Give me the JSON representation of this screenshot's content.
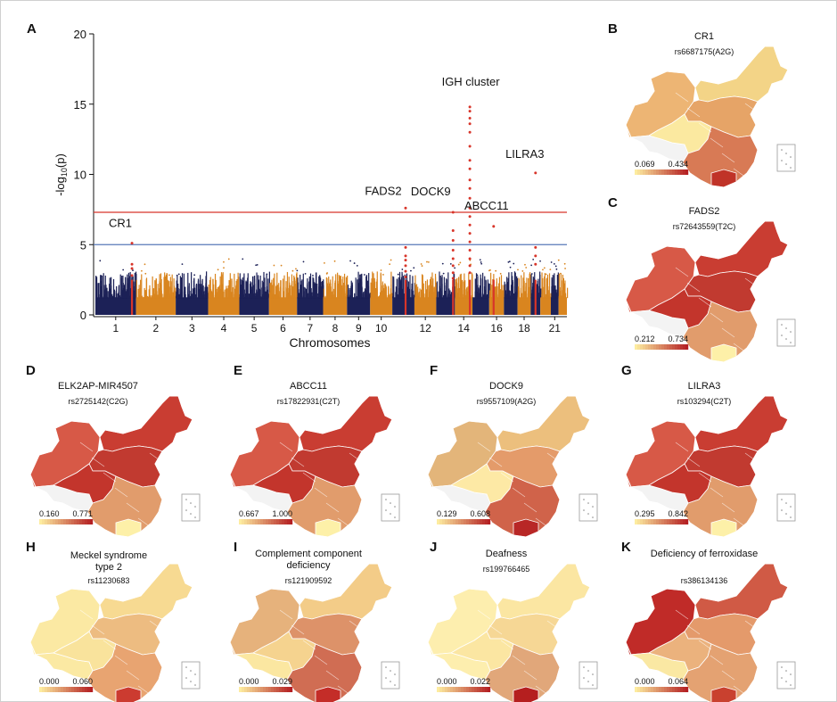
{
  "chart_data": [
    {
      "panel": "A",
      "type": "scatter",
      "subtype": "manhattan",
      "ylabel": "-log10(p)",
      "xlabel": "Chromosomes",
      "ylim": [
        0,
        20
      ],
      "yticks": [
        0,
        5,
        10,
        15,
        20
      ],
      "chromosomes": [
        1,
        2,
        3,
        4,
        5,
        6,
        7,
        8,
        9,
        10,
        11,
        12,
        13,
        14,
        15,
        16,
        17,
        18,
        19,
        20,
        21,
        22
      ],
      "tick_labels": [
        "1",
        "2",
        "3",
        "4",
        "5",
        "6",
        "7",
        "8",
        "9",
        "10",
        "12",
        "14",
        "16",
        "18",
        "21"
      ],
      "tick_chroms": [
        1,
        2,
        3,
        4,
        5,
        6,
        7,
        8,
        9,
        10,
        12,
        14,
        16,
        18,
        21
      ],
      "chrom_colors": [
        "#1c2157",
        "#d9851f"
      ],
      "hit_color": "#d8352a",
      "thresholds": [
        {
          "name": "genome-wide",
          "value": 7.3,
          "color": "#d8352a"
        },
        {
          "name": "suggestive",
          "value": 5.0,
          "color": "#5878b8"
        }
      ],
      "annotations": [
        {
          "label": "CR1",
          "chrom": 1,
          "value": 5.1
        },
        {
          "label": "FADS2",
          "chrom": 11,
          "value": 7.6
        },
        {
          "label": "DOCK9",
          "chrom": 13,
          "value": 7.3
        },
        {
          "label": "IGH cluster",
          "chrom": 14,
          "value": 14.8
        },
        {
          "label": "ABCC11",
          "chrom": 16,
          "value": 6.3
        },
        {
          "label": "LILRA3",
          "chrom": 19,
          "value": 10.1
        }
      ],
      "hits": [
        {
          "chrom": 1,
          "pos": 0.9,
          "values": [
            5.1,
            3.6,
            3.3,
            2.8
          ]
        },
        {
          "chrom": 11,
          "pos": 0.6,
          "values": [
            7.6,
            4.8,
            4.2,
            3.9,
            3.5,
            3.1,
            2.7
          ]
        },
        {
          "chrom": 13,
          "pos": 0.9,
          "values": [
            7.3,
            6.0,
            5.3,
            4.6,
            4.0,
            3.5,
            3.0,
            2.6
          ]
        },
        {
          "chrom": 14,
          "pos": 0.85,
          "values": [
            14.8,
            14.5,
            14.0,
            13.6,
            13.0,
            12.0,
            11.0,
            10.4,
            9.6,
            9.0,
            8.3,
            7.6,
            7.0,
            6.4,
            5.8,
            5.2,
            4.6,
            4.0,
            3.5,
            3.0
          ]
        },
        {
          "chrom": 16,
          "pos": 0.3,
          "values": [
            6.3
          ]
        },
        {
          "chrom": 19,
          "pos": 0.5,
          "values": [
            10.1,
            4.8,
            4.2,
            3.6
          ]
        }
      ]
    },
    {
      "panel": "B",
      "type": "heatmap",
      "subtype": "choropleth-map",
      "title": "CR1",
      "subtitle": "rs6687175(A2G)",
      "range": [
        0.069,
        0.434
      ],
      "palette": "low"
    },
    {
      "panel": "C",
      "type": "heatmap",
      "subtype": "choropleth-map",
      "title": "FADS2",
      "subtitle": "rs72643559(T2C)",
      "range": [
        0.212,
        0.734
      ],
      "palette": "high"
    },
    {
      "panel": "D",
      "type": "heatmap",
      "subtype": "choropleth-map",
      "title": "ELK2AP-MIR4507",
      "subtitle": "rs2725142(C2G)",
      "range": [
        0.16,
        0.771
      ],
      "palette": "high"
    },
    {
      "panel": "E",
      "type": "heatmap",
      "subtype": "choropleth-map",
      "title": "ABCC11",
      "subtitle": "rs17822931(C2T)",
      "range": [
        0.667,
        1.0
      ],
      "palette": "high"
    },
    {
      "panel": "F",
      "type": "heatmap",
      "subtype": "choropleth-map",
      "title": "DOCK9",
      "subtitle": "rs9557109(A2G)",
      "range": [
        0.129,
        0.608
      ],
      "palette": "mid"
    },
    {
      "panel": "G",
      "type": "heatmap",
      "subtype": "choropleth-map",
      "title": "LILRA3",
      "subtitle": "rs103294(C2T)",
      "range": [
        0.295,
        0.842
      ],
      "palette": "high"
    },
    {
      "panel": "H",
      "type": "heatmap",
      "subtype": "choropleth-map",
      "title": "Meckel syndrome type 2",
      "subtitle": "rs11230683",
      "range": [
        0.0,
        0.06
      ],
      "palette": "light"
    },
    {
      "panel": "I",
      "type": "heatmap",
      "subtype": "choropleth-map",
      "title": "Complement component deficiency",
      "subtitle": "rs121909592",
      "range": [
        0.0,
        0.029
      ],
      "palette": "lowsouth"
    },
    {
      "panel": "J",
      "type": "heatmap",
      "subtype": "choropleth-map",
      "title": "Deafness",
      "subtitle": "rs199766465",
      "range": [
        0.0,
        0.022
      ],
      "palette": "verylight"
    },
    {
      "panel": "K",
      "type": "heatmap",
      "subtype": "choropleth-map",
      "title": "Deficiency of ferroxidase",
      "subtitle": "rs386134136",
      "range": [
        0.0,
        0.064
      ],
      "palette": "west"
    }
  ]
}
